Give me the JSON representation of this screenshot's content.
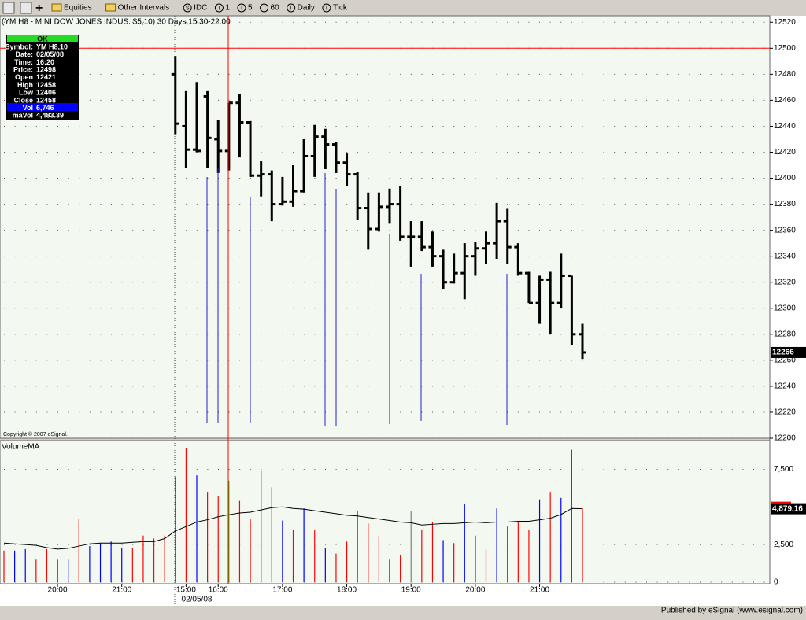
{
  "toolbar": {
    "items": [
      {
        "label": "Equities"
      },
      {
        "label": "Other Intervals"
      },
      {
        "icon": "S",
        "label": "IDC"
      },
      {
        "icon": "I",
        "label": "1"
      },
      {
        "icon": "I",
        "label": "5"
      },
      {
        "icon": "I",
        "label": "60"
      },
      {
        "icon": "I",
        "label": "Daily"
      },
      {
        "icon": "I",
        "label": "Tick"
      }
    ]
  },
  "info_box": {
    "header": "OK",
    "rows": [
      [
        "Symbol:",
        "YM H8,10"
      ],
      [
        "Date:",
        "02/05/08"
      ],
      [
        "Time:",
        "16:20"
      ],
      [
        "Price:",
        "12498"
      ],
      [
        "Open",
        "12421"
      ],
      [
        "High",
        "12458"
      ],
      [
        "Low",
        "12406"
      ],
      [
        "Close",
        "12458"
      ],
      [
        "Vol",
        "6,746"
      ],
      [
        "maVol",
        "4,483.39"
      ]
    ]
  },
  "copyright": "Copyright © 2007 eSignal.",
  "footer": "Published by eSignal (www.esignal.com)",
  "chart_data": [
    {
      "type": "ohlc",
      "title": "(YM H8 - MINI DOW JONES INDUS. $5,10) 30 Days,15:30-22:00",
      "ylim": [
        12200,
        12525
      ],
      "yticks": [
        12200,
        12220,
        12240,
        12260,
        12280,
        12300,
        12320,
        12340,
        12360,
        12380,
        12400,
        12420,
        12440,
        12460,
        12480,
        12500,
        12520
      ],
      "grid": true,
      "color": "#000000",
      "hline": 12500,
      "hline_color": "#ff0000",
      "last_price": 12266,
      "open": [
        null,
        null,
        null,
        null,
        null,
        null,
        null,
        null,
        null,
        null,
        null,
        null,
        null,
        null,
        null,
        null,
        12480,
        12440,
        12422,
        12463,
        12430,
        12421,
        12458,
        12443,
        12402,
        12403,
        12380,
        12382,
        12390,
        12417,
        12432,
        12426,
        12412,
        12403,
        12377,
        12361,
        12378,
        12380,
        12355,
        12355,
        12347,
        12340,
        12320,
        12327,
        12340,
        12346,
        12350,
        12367,
        12347,
        12327,
        12304,
        12322,
        12304,
        12325,
        12280
      ],
      "high": [
        null,
        null,
        null,
        null,
        null,
        null,
        null,
        null,
        null,
        null,
        null,
        null,
        null,
        null,
        null,
        null,
        12494,
        12467,
        12474,
        12467,
        12445,
        12458,
        12465,
        12444,
        12413,
        12406,
        12401,
        12410,
        12430,
        12441,
        12438,
        12428,
        12419,
        12405,
        12389,
        12389,
        12392,
        12394,
        12367,
        12367,
        12359,
        12345,
        12342,
        12350,
        12351,
        12359,
        12381,
        12377,
        12350,
        12328,
        12325,
        12328,
        12342,
        12325,
        12288
      ],
      "low": [
        null,
        null,
        null,
        null,
        null,
        null,
        null,
        null,
        null,
        null,
        null,
        null,
        null,
        null,
        null,
        null,
        12434,
        12408,
        12420,
        12408,
        12404,
        12406,
        12416,
        12401,
        12386,
        12367,
        12379,
        12378,
        12389,
        12401,
        12407,
        12404,
        12394,
        12368,
        12345,
        12359,
        12365,
        12352,
        12332,
        12344,
        12332,
        12315,
        12319,
        12307,
        12325,
        12334,
        12338,
        12334,
        12325,
        12304,
        12288,
        12280,
        12300,
        12272,
        12261
      ],
      "close": [
        null,
        null,
        null,
        null,
        null,
        null,
        null,
        null,
        null,
        null,
        null,
        null,
        null,
        null,
        null,
        null,
        12442,
        12422,
        12421,
        12431,
        12421,
        12458,
        12443,
        12402,
        12403,
        12380,
        12382,
        12390,
        12417,
        12432,
        12426,
        12412,
        12403,
        12377,
        12361,
        12378,
        12380,
        12355,
        12355,
        12347,
        12340,
        12320,
        12327,
        12340,
        12346,
        12350,
        12367,
        12347,
        12327,
        12304,
        12322,
        12304,
        12325,
        12280,
        12266
      ]
    },
    {
      "type": "bar",
      "title": "VolumeMA",
      "ylim": [
        0,
        9300
      ],
      "yticks": [
        0,
        {
          "value": 2500,
          "label": "2,500"
        },
        {
          "value": 7500,
          "label": "7,500"
        }
      ],
      "grid": true,
      "date_label": "02/05/08",
      "last_value": {
        "value": 4879.16,
        "label": "4,879.16"
      },
      "categories": [
        null,
        null,
        null,
        null,
        null,
        "20:00",
        null,
        null,
        null,
        null,
        null,
        "21:00",
        null,
        null,
        null,
        null,
        null,
        "15:00",
        null,
        null,
        "16:00",
        null,
        null,
        null,
        null,
        null,
        "17:00",
        null,
        null,
        null,
        null,
        null,
        "18:00",
        null,
        null,
        null,
        null,
        null,
        "19:00",
        null,
        null,
        null,
        null,
        null,
        "20:00",
        null,
        null,
        null,
        null,
        null,
        "21:00",
        null,
        null,
        null,
        null
      ],
      "series": [
        {
          "values": [
            2100,
            2100,
            2200,
            1500,
            2200,
            1500,
            1500,
            4200,
            2400,
            2600,
            2700,
            2300,
            2300,
            3100,
            2900,
            3100,
            7000,
            8900,
            7100,
            6000,
            5700,
            6746,
            5400,
            4200,
            7400,
            6300,
            4100,
            3500,
            4900,
            3500,
            2300,
            1900,
            2700,
            4700,
            3900,
            3100,
            1500,
            1800,
            4700,
            3500,
            4000,
            2800,
            2600,
            5200,
            3100,
            2200,
            4900,
            3700,
            4000,
            3500,
            5500,
            6000,
            5600,
            8800,
            4900
          ],
          "colors": [
            "#ff0000",
            "#0000ff",
            "#0000ff",
            "#ff0000",
            "#ff0000",
            "#0000ff",
            "#0000ff",
            "#ff0000",
            "#0000ff",
            "#0000ff",
            "#0000ff",
            "#0000ff",
            "#ff0000",
            "#ff0000",
            "#ff0000",
            "#ff0000",
            "#ff0000",
            "#ff0000",
            "#0000ff",
            "#ff0000",
            "#ff0000",
            "#00cc00",
            "#ff0000",
            "#ff0000",
            "#0000ff",
            "#ff0000",
            "#0000ff",
            "#ff0000",
            "#0000ff",
            "#ff0000",
            "#0000ff",
            "#ff0000",
            "#ff0000",
            "#ff0000",
            "#ff0000",
            "#ff0000",
            "#0000ff",
            "#ff0000",
            "#808080",
            "#ff0000",
            "#ff0000",
            "#0000ff",
            "#ff0000",
            "#0000ff",
            "#0000ff",
            "#ff0000",
            "#0000ff",
            "#ff0000",
            "#ff0000",
            "#ff0000",
            "#0000ff",
            "#ff0000",
            "#0000ff",
            "#ff0000",
            "#ff0000"
          ]
        },
        {
          "type": "line",
          "color": "#000000",
          "values": [
            2600,
            2550,
            2500,
            2450,
            2300,
            2200,
            2250,
            2400,
            2550,
            2600,
            2600,
            2600,
            2650,
            2700,
            2700,
            2900,
            3400,
            3700,
            4000,
            4150,
            4350,
            4483.39,
            4600,
            4650,
            4800,
            4950,
            5000,
            4900,
            4850,
            4750,
            4650,
            4550,
            4450,
            4400,
            4300,
            4200,
            4100,
            4000,
            3950,
            3800,
            3850,
            3900,
            3900,
            3950,
            4000,
            3950,
            4000,
            4000,
            4050,
            4050,
            4150,
            4250,
            4500,
            4900,
            4879.16
          ]
        }
      ]
    }
  ]
}
